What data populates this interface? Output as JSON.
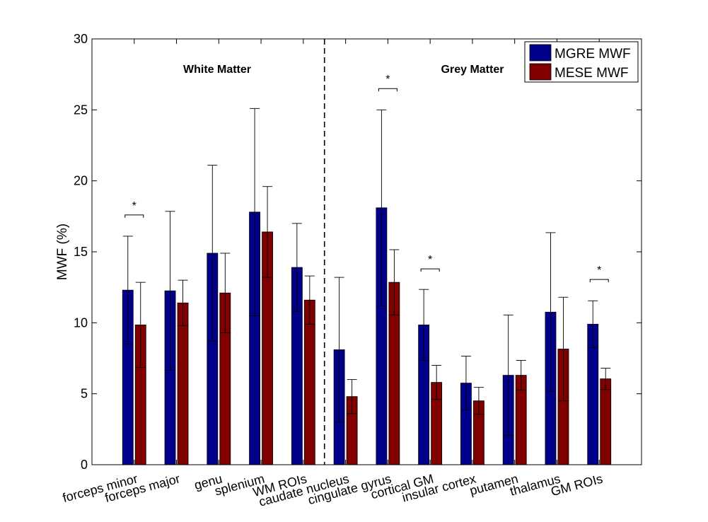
{
  "chart_data": {
    "type": "bar",
    "title": "",
    "xlabel": "",
    "ylabel": "MWF (%)",
    "ylim": [
      0,
      30
    ],
    "yticks": [
      "0",
      "5",
      "10",
      "15",
      "20",
      "25",
      "30"
    ],
    "categories": [
      "forceps minor",
      "forceps major",
      "genu",
      "splenium",
      "WM ROIs",
      "caudate nucleus",
      "cingulate gyrus",
      "cortical GM",
      "insular cortex",
      "putamen",
      "thalamus",
      "GM ROIs"
    ],
    "series": [
      {
        "name": "MGRE MWF",
        "color": "#00008B",
        "values": [
          12.3,
          12.25,
          14.9,
          17.8,
          13.9,
          8.1,
          18.1,
          9.85,
          5.75,
          6.3,
          10.75,
          9.9
        ],
        "errors": [
          3.8,
          5.6,
          6.2,
          7.3,
          3.1,
          5.1,
          6.9,
          2.5,
          1.9,
          4.25,
          5.6,
          1.65
        ]
      },
      {
        "name": "MESE MWF",
        "color": "#800000",
        "values": [
          9.85,
          11.4,
          12.1,
          16.4,
          11.6,
          4.8,
          12.85,
          5.8,
          4.5,
          6.3,
          8.15,
          6.05
        ],
        "errors": [
          3.0,
          1.6,
          2.8,
          3.2,
          1.7,
          1.2,
          2.3,
          1.2,
          0.95,
          1.05,
          3.65,
          0.75
        ]
      }
    ],
    "significance": {
      "symbol": "*",
      "categories": [
        "forceps minor",
        "cingulate gyrus",
        "cortical GM",
        "GM ROIs"
      ],
      "bracket_levels": [
        17.6,
        26.5,
        13.8,
        13.05
      ]
    },
    "annotations": [
      {
        "text": "White Matter"
      },
      {
        "text": "Grey Matter"
      }
    ],
    "divider_after_category": "WM ROIs",
    "legend_position": "top-right"
  }
}
